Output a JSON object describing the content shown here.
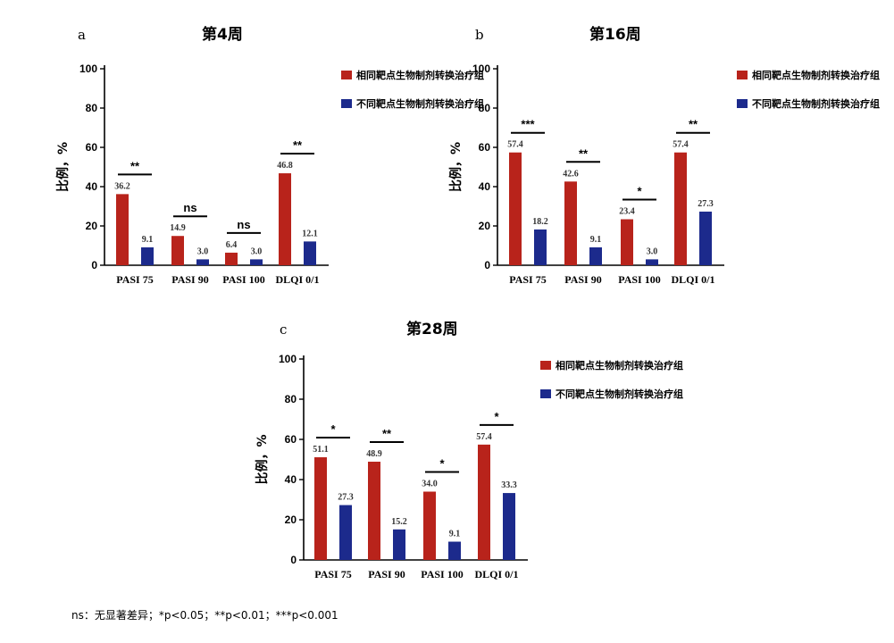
{
  "chart_data": [
    {
      "type": "bar",
      "panel": "a",
      "title": "第4周",
      "ylabel": "比例，%",
      "ylim": [
        0,
        100
      ],
      "yticks": [
        0,
        20,
        40,
        60,
        80,
        100
      ],
      "categories": [
        "PASI 75",
        "PASI 90",
        "PASI 100",
        "DLQI 0/1"
      ],
      "series": [
        {
          "name": "相同靶点生物制剂转换治疗组",
          "color": "#b8231b",
          "values": [
            36.2,
            14.9,
            6.4,
            46.8
          ],
          "labels": [
            "36.2",
            "14.9",
            "6.4",
            "46.8"
          ]
        },
        {
          "name": "不同靶点生物制剂转换治疗组",
          "color": "#1c2a8c",
          "values": [
            9.1,
            3.0,
            3.0,
            12.1
          ],
          "labels": [
            "9.1",
            "3.0",
            "3.0",
            "12.1"
          ]
        }
      ],
      "significance": [
        "**",
        "ns",
        "ns",
        "**"
      ],
      "legend": "top-right"
    },
    {
      "type": "bar",
      "panel": "b",
      "title": "第16周",
      "ylabel": "比例，%",
      "ylim": [
        0,
        100
      ],
      "yticks": [
        0,
        20,
        40,
        60,
        80,
        100
      ],
      "categories": [
        "PASI 75",
        "PASI 90",
        "PASI 100",
        "DLQI 0/1"
      ],
      "series": [
        {
          "name": "相同靶点生物制剂转换治疗组",
          "color": "#b8231b",
          "values": [
            57.4,
            42.6,
            23.4,
            57.4
          ],
          "labels": [
            "57.4",
            "42.6",
            "23.4",
            "57.4"
          ]
        },
        {
          "name": "不同靶点生物制剂转换治疗组",
          "color": "#1c2a8c",
          "values": [
            18.2,
            9.1,
            3.0,
            27.3
          ],
          "labels": [
            "18.2",
            "9.1",
            "3.0",
            "27.3"
          ]
        }
      ],
      "significance": [
        "***",
        "**",
        "*",
        "**"
      ],
      "legend": "top-right"
    },
    {
      "type": "bar",
      "panel": "c",
      "title": "第28周",
      "ylabel": "比例，%",
      "ylim": [
        0,
        100
      ],
      "yticks": [
        0,
        20,
        40,
        60,
        80,
        100
      ],
      "categories": [
        "PASI 75",
        "PASI 90",
        "PASI 100",
        "DLQI 0/1"
      ],
      "series": [
        {
          "name": "相同靶点生物制剂转换治疗组",
          "color": "#b8231b",
          "values": [
            51.1,
            48.9,
            34.0,
            57.4
          ],
          "labels": [
            "51.1",
            "48.9",
            "34.0",
            "57.4"
          ]
        },
        {
          "name": "不同靶点生物制剂转换治疗组",
          "color": "#1c2a8c",
          "values": [
            27.3,
            15.2,
            9.1,
            33.3
          ],
          "labels": [
            "27.3",
            "15.2",
            "9.1",
            "33.3"
          ]
        }
      ],
      "significance": [
        "*",
        "**",
        "*",
        "*"
      ],
      "legend": "top-right"
    }
  ],
  "footnote": "ns：无显著差异；*p<0.05；**p<0.01；***p<0.001"
}
